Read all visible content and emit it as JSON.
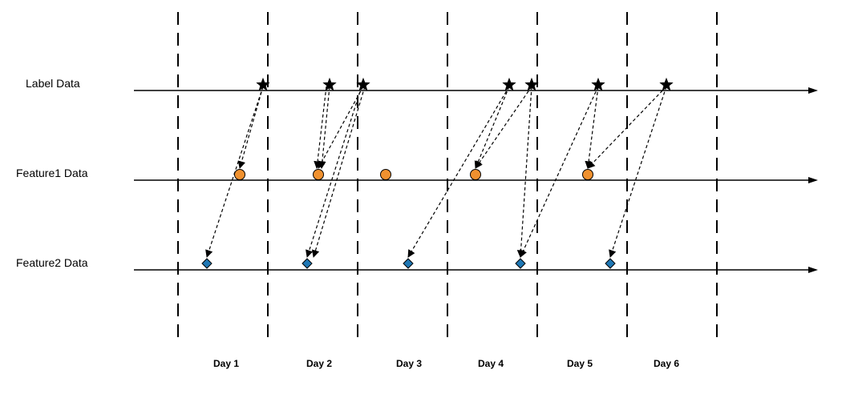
{
  "rows": [
    {
      "id": "label",
      "name": "Label Data"
    },
    {
      "id": "feature1",
      "name": "Feature1 Data"
    },
    {
      "id": "feature2",
      "name": "Feature2 Data"
    }
  ],
  "days": [
    "Day 1",
    "Day 2",
    "Day 3",
    "Day 4",
    "Day 5",
    "Day 6"
  ],
  "colors": {
    "feature1": "#F0912F",
    "feature2": "#1F77B4",
    "label": "#000000",
    "line": "#000000"
  },
  "markers": {
    "label": [
      {
        "id": "L1",
        "day": "Day 1"
      },
      {
        "id": "L2",
        "day": "Day 2"
      },
      {
        "id": "L3",
        "day": "Day 2"
      },
      {
        "id": "L4",
        "day": "Day 4"
      },
      {
        "id": "L5",
        "day": "Day 4"
      },
      {
        "id": "L6",
        "day": "Day 5"
      },
      {
        "id": "L7",
        "day": "Day 6"
      }
    ],
    "feature1": [
      {
        "id": "F1a",
        "day": "Day 1"
      },
      {
        "id": "F1b",
        "day": "Day 2"
      },
      {
        "id": "F1c",
        "day": "Day 3"
      },
      {
        "id": "F1d",
        "day": "Day 4"
      },
      {
        "id": "F1e",
        "day": "Day 5"
      }
    ],
    "feature2": [
      {
        "id": "F2a",
        "day": "Day 1"
      },
      {
        "id": "F2b",
        "day": "Day 2"
      },
      {
        "id": "F2c",
        "day": "Day 3"
      },
      {
        "id": "F2d",
        "day": "Day 4"
      },
      {
        "id": "F2e",
        "day": "Day 5"
      }
    ]
  },
  "links": [
    [
      "L1",
      "F1a"
    ],
    [
      "L1",
      "F2a"
    ],
    [
      "L2",
      "F1b"
    ],
    [
      "L2",
      "F1b"
    ],
    [
      "L3",
      "F1b"
    ],
    [
      "L3",
      "F2b"
    ],
    [
      "L3",
      "F2b"
    ],
    [
      "L4",
      "F1d"
    ],
    [
      "L4",
      "F2c"
    ],
    [
      "L5",
      "F1d"
    ],
    [
      "L5",
      "F2d"
    ],
    [
      "L6",
      "F1e"
    ],
    [
      "L6",
      "F2d"
    ],
    [
      "L7",
      "F1e"
    ],
    [
      "L7",
      "F2e"
    ]
  ]
}
